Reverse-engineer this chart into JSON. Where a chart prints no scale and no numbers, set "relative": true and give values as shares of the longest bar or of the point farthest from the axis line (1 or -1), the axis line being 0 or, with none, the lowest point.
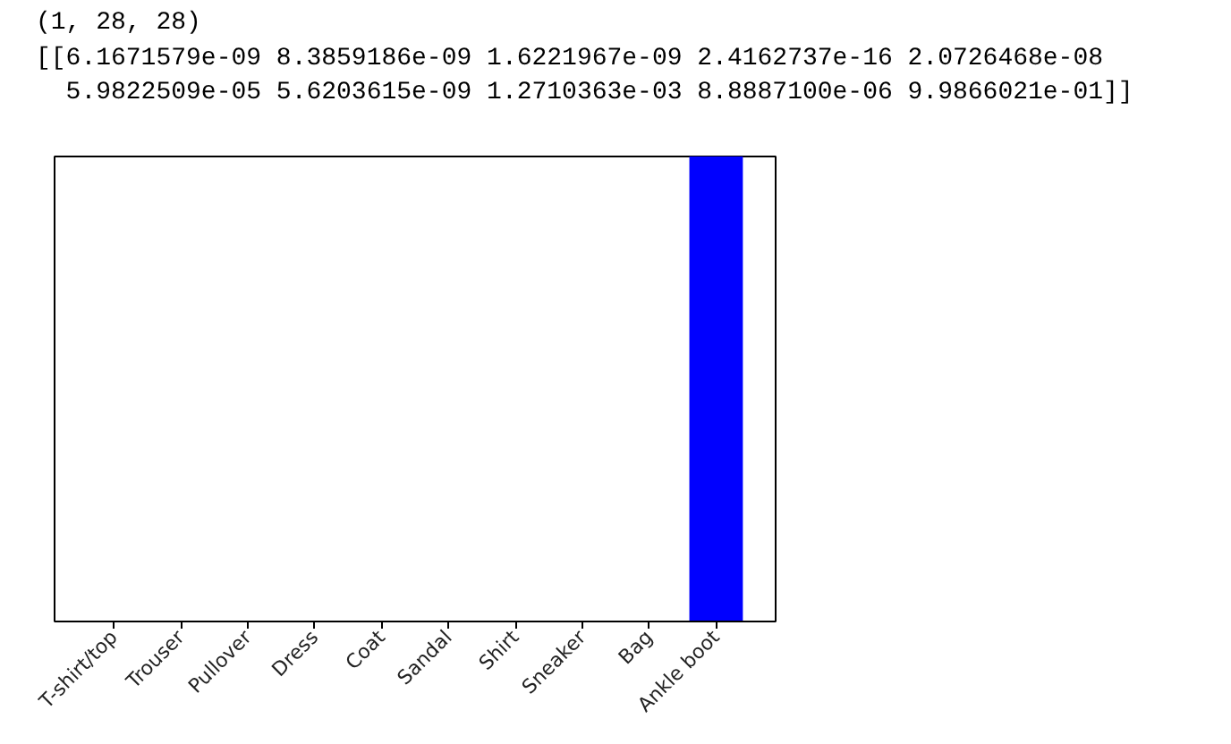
{
  "chart_data": {
    "type": "bar",
    "annotations": [
      "(1, 28, 28)",
      "[[6.1671579e-09 8.3859186e-09 1.6221967e-09 2.4162737e-16 2.0726468e-08",
      "  5.9822509e-05 5.6203615e-09 1.2710363e-03 8.8887100e-06 9.9866021e-01]]"
    ],
    "categories": [
      "T-shirt/top",
      "Trouser",
      "Pullover",
      "Dress",
      "Coat",
      "Sandal",
      "Shirt",
      "Sneaker",
      "Bag",
      "Ankle boot"
    ],
    "values": [
      0,
      0,
      0,
      0,
      0,
      0,
      0,
      0,
      0,
      1
    ],
    "color": "#0000ff",
    "relative": true,
    "grid": false
  }
}
